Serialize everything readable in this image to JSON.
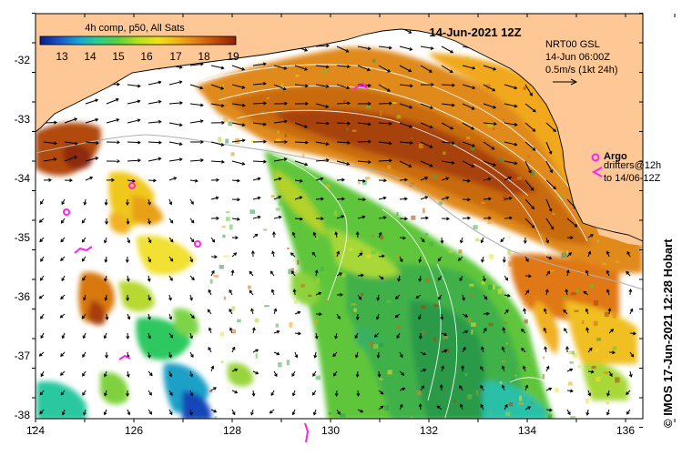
{
  "colorbar": {
    "title": "4h comp, p50, All Sats",
    "ticks": [
      "13",
      "14",
      "15",
      "16",
      "17",
      "18",
      "19"
    ],
    "stops": [
      "#0b1a8c",
      "#1a55c8",
      "#16a7d6",
      "#2ccf8a",
      "#5bd23a",
      "#b4e21b",
      "#f2e21a",
      "#f2b414",
      "#e27d12",
      "#c24a08",
      "#8e1f06"
    ]
  },
  "timestamp": "14-Jun-2021 12Z",
  "current_legend": {
    "source": "NRT00 GSL",
    "time": "14-Jun 06:00Z",
    "scale": "0.5m/s (1kt 24h)"
  },
  "argo_legend": {
    "label": "Argo",
    "drifters_line1": "drifters@12h",
    "drifters_line2": "to 14/06-12Z"
  },
  "credit": "© IMOS 17-Jun-2021 12:28 Hobart",
  "axes": {
    "lon_labels": [
      "124",
      "126",
      "128",
      "130",
      "132",
      "134",
      "136"
    ],
    "lat_labels": [
      "-32",
      "-33",
      "-34",
      "-35",
      "-36",
      "-37",
      "-38"
    ]
  },
  "colors": {
    "land": "#fdc896",
    "no_data": "#ffffff",
    "argo_marker": "#ff22ee",
    "contour": "#ffffff",
    "shelf": "#b0b0b0"
  }
}
